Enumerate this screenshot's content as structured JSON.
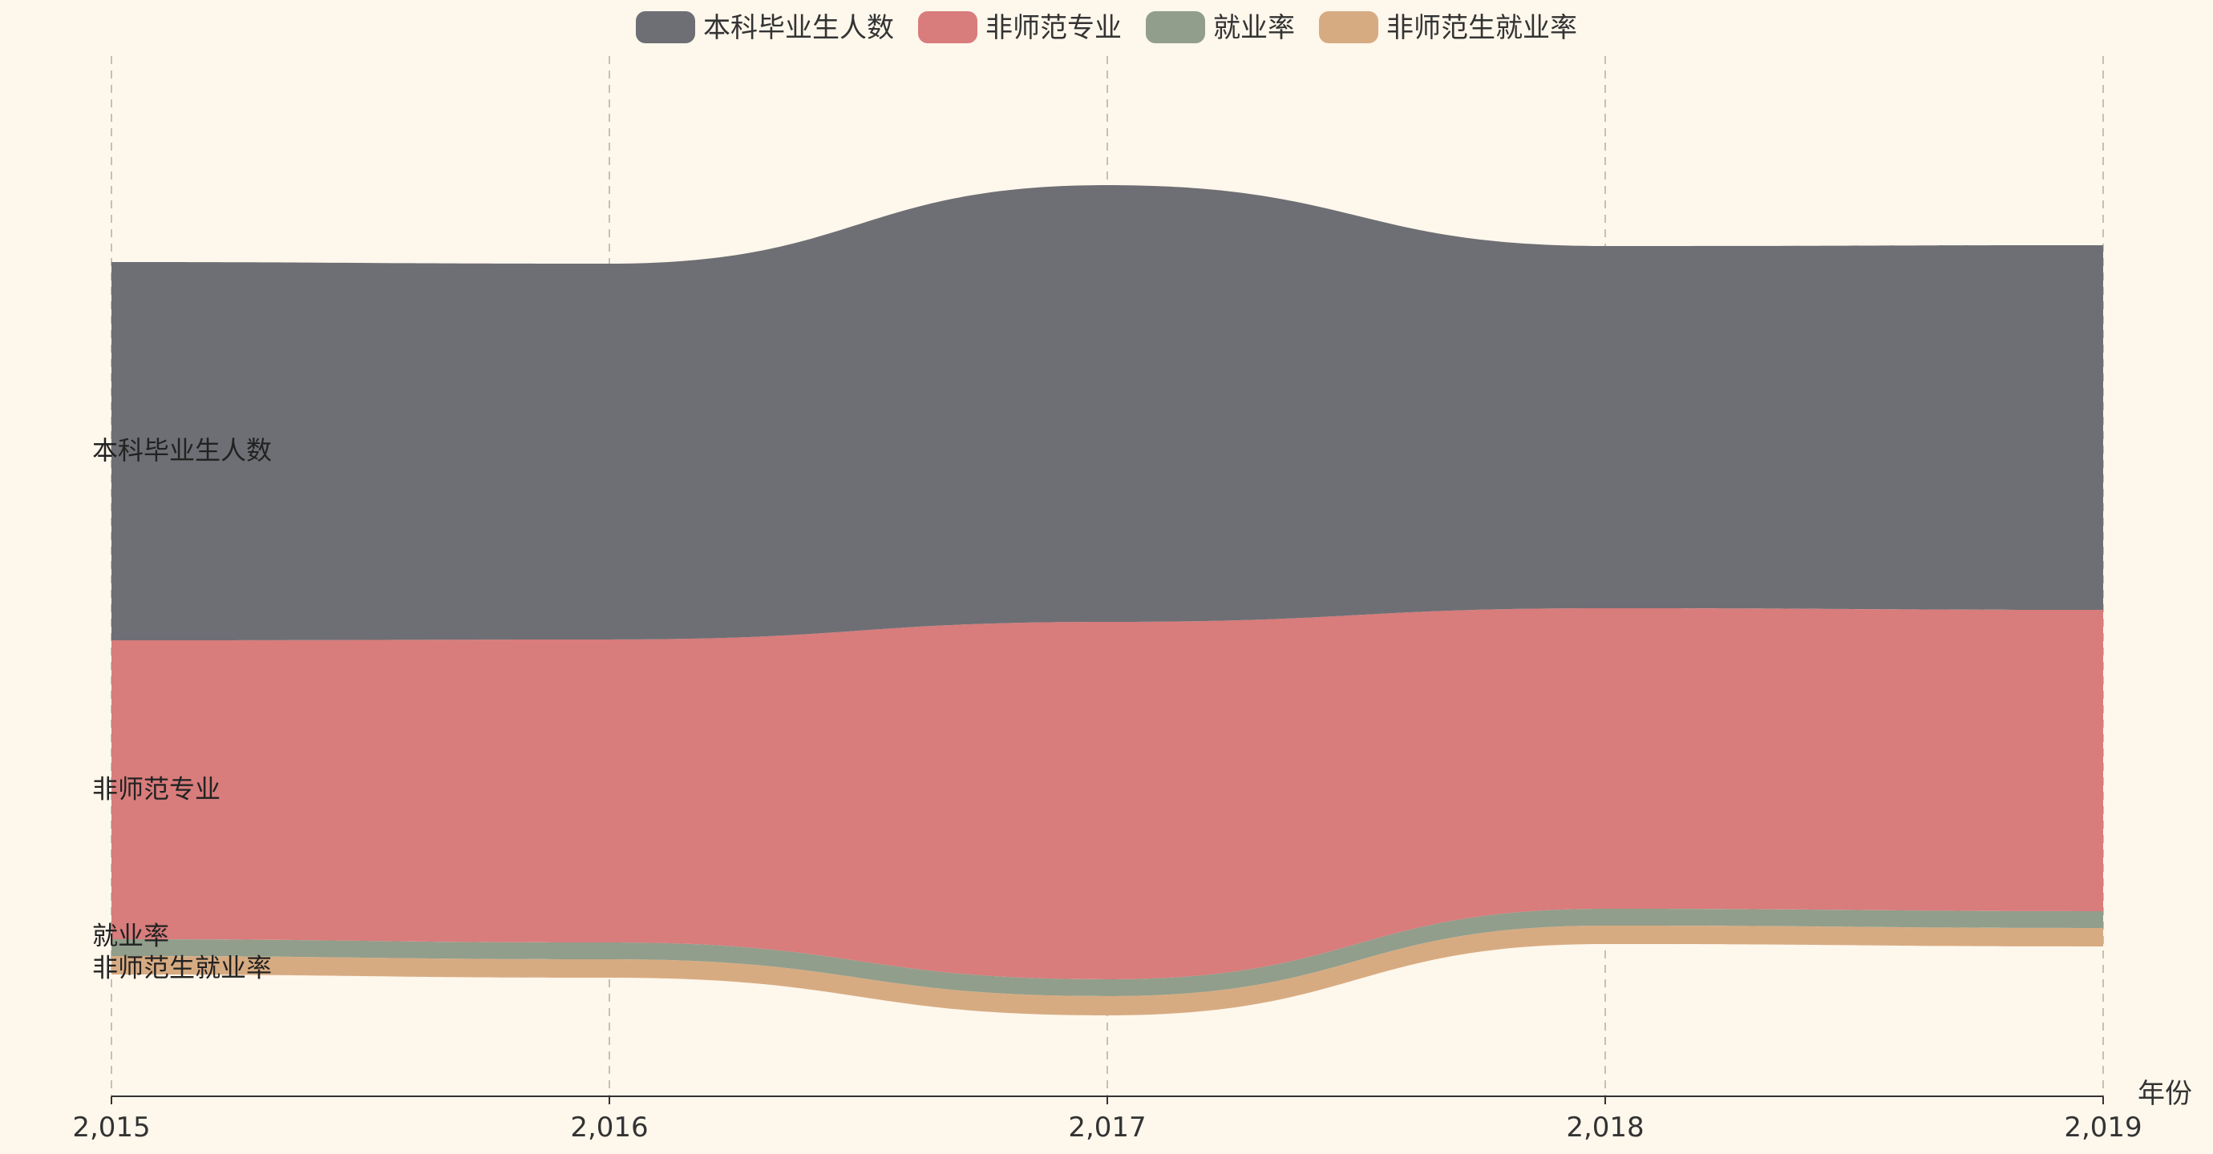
{
  "chart_data": {
    "type": "area",
    "subtype": "themeRiver",
    "x_axis_name": "年份",
    "x": [
      2015,
      2016,
      2017,
      2018,
      2019
    ],
    "x_tick_labels": [
      "2,015",
      "2,016",
      "2,017",
      "2,018",
      "2,019"
    ],
    "grid": "vertical dashed lines at each year",
    "legend_position": "top-center",
    "series": [
      {
        "name": "本科毕业生人数",
        "color": "#6e6f74",
        "values": [
          472,
          469,
          545,
          452,
          455
        ]
      },
      {
        "name": "非师范专业",
        "color": "#d87c7c",
        "values": [
          373,
          378,
          446,
          375,
          376
        ]
      },
      {
        "name": "就业率",
        "color": "#919e8b",
        "values": [
          21,
          21,
          21,
          21,
          21
        ]
      },
      {
        "name": "非师范生就业率",
        "color": "#d7ab82",
        "values": [
          23,
          23,
          24,
          23,
          23
        ]
      }
    ],
    "y_baseline": [
      1216,
      1220,
      1267,
      1178,
      1181
    ]
  }
}
